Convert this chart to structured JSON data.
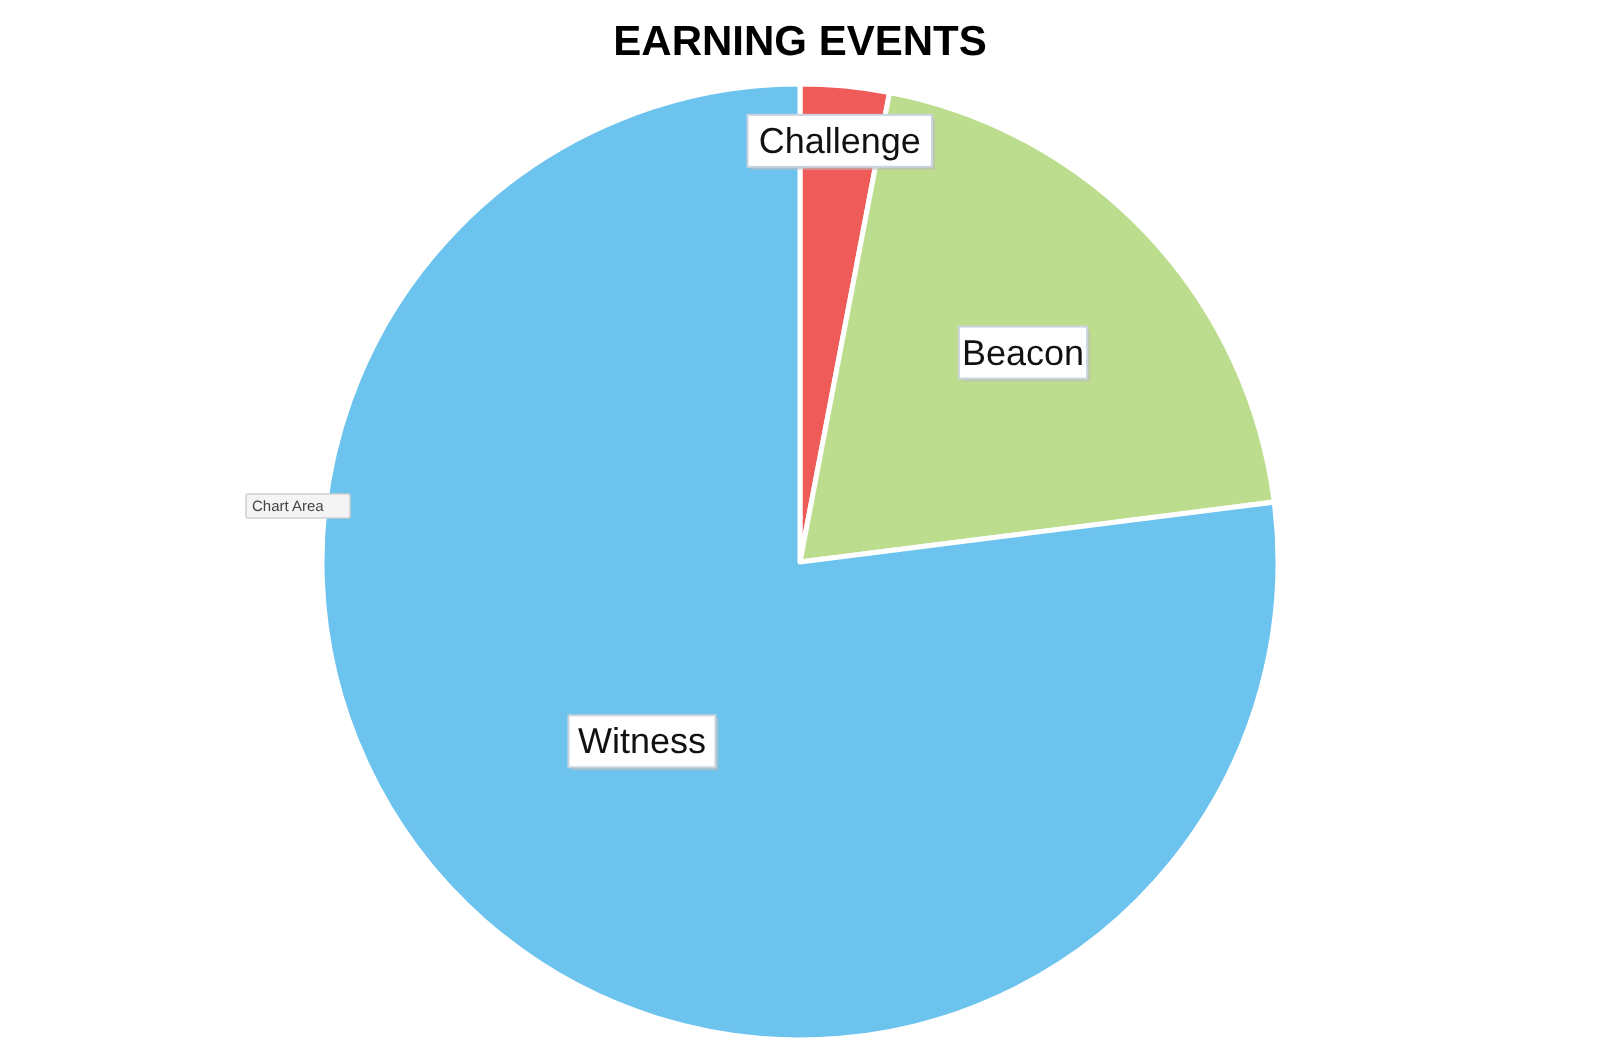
{
  "chart_data": {
    "type": "pie",
    "title": "EARNING EVENTS",
    "categories": [
      "Challenge",
      "Beacon",
      "Witness"
    ],
    "values": [
      3,
      20,
      77
    ],
    "colors": [
      "#ef5b58",
      "#bcdd8d",
      "#6bc3ee"
    ],
    "annotations": [
      "Chart Area"
    ]
  }
}
